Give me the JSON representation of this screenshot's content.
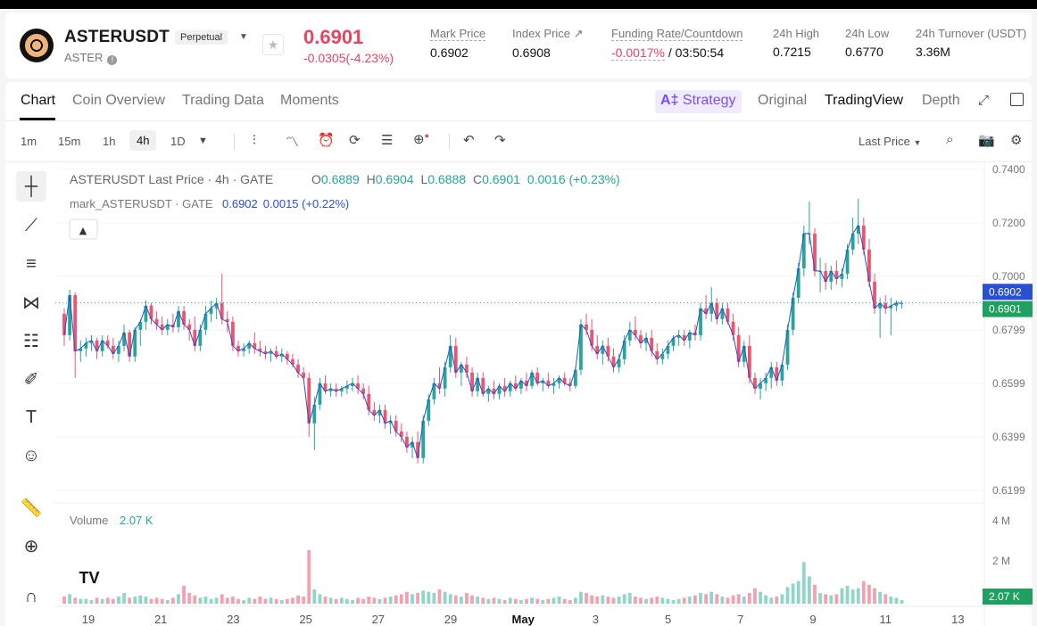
{
  "header": {
    "symbol": "ASTERUSDT",
    "contract_type": "Perpetual",
    "base": "ASTER",
    "last_price": "0.6901",
    "change": "-0.0305(-4.23%)",
    "stats": [
      {
        "label": "Mark Price",
        "value": "0.6902"
      },
      {
        "label": "Index Price ↗",
        "value": "0.6908"
      },
      {
        "label": "Funding Rate/Countdown",
        "value_a": "-0.0017%",
        "value_b": " / 03:50:54"
      },
      {
        "label": "24h High",
        "value": "0.7215"
      },
      {
        "label": "24h Low",
        "value": "0.6770"
      },
      {
        "label": "24h Turnover (USDT)",
        "value": "3.36M"
      }
    ]
  },
  "tabs": [
    "Chart",
    "Coin Overview",
    "Trading Data",
    "Moments"
  ],
  "right_tabs": {
    "strategy": "Strategy",
    "original": "Original",
    "tradingview": "TradingView",
    "depth": "Depth"
  },
  "timeframes": [
    "1m",
    "15m",
    "1h",
    "4h",
    "1D"
  ],
  "price_type": "Last Price",
  "legend": {
    "title": "ASTERUSDT Last Price · 4h · GATE",
    "o_label": "O",
    "o": "0.6889",
    "h_label": "H",
    "h": "0.6904",
    "l_label": "L",
    "l": "0.6888",
    "c_label": "C",
    "c": "0.6901",
    "chg": "0.0016 (+0.23%)",
    "mark_label": "mark_ASTERUSDT · GATE",
    "mark_value": "0.6902",
    "mark_chg": "0.0015 (+0.22%)",
    "volume_label": "Volume",
    "volume_value": "2.07 K"
  },
  "colors": {
    "up": "#26a69a",
    "down": "#ef5370",
    "mark_line": "#2a4fd0",
    "accent": "#7b4dff"
  },
  "chart_data": {
    "type": "candlestick",
    "interval": "4h",
    "y_ticks": [
      "0.7400",
      "0.7200",
      "0.7000",
      "0.6799",
      "0.6599",
      "0.6399",
      "0.6199"
    ],
    "ylim": [
      0.6199,
      0.74
    ],
    "x_ticks": [
      "19",
      "21",
      "23",
      "25",
      "27",
      "29",
      "May",
      "3",
      "5",
      "7",
      "9",
      "11",
      "13"
    ],
    "price_badges": {
      "mark": "0.6902",
      "last": "0.6901"
    },
    "volume_ticks": [
      "4 M",
      "2 M"
    ],
    "volume_badge": "2.07 K",
    "ohlc": [
      [
        0.686,
        0.688,
        0.674,
        0.678
      ],
      [
        0.678,
        0.695,
        0.676,
        0.693
      ],
      [
        0.693,
        0.694,
        0.662,
        0.672
      ],
      [
        0.672,
        0.676,
        0.668,
        0.673
      ],
      [
        0.673,
        0.677,
        0.67,
        0.675
      ],
      [
        0.675,
        0.678,
        0.672,
        0.676
      ],
      [
        0.676,
        0.677,
        0.669,
        0.672
      ],
      [
        0.672,
        0.678,
        0.67,
        0.676
      ],
      [
        0.676,
        0.678,
        0.673,
        0.674
      ],
      [
        0.674,
        0.677,
        0.669,
        0.671
      ],
      [
        0.671,
        0.676,
        0.668,
        0.674
      ],
      [
        0.674,
        0.682,
        0.672,
        0.679
      ],
      [
        0.679,
        0.68,
        0.668,
        0.67
      ],
      [
        0.67,
        0.681,
        0.668,
        0.68
      ],
      [
        0.68,
        0.684,
        0.674,
        0.683
      ],
      [
        0.683,
        0.691,
        0.68,
        0.689
      ],
      [
        0.689,
        0.69,
        0.682,
        0.684
      ],
      [
        0.684,
        0.687,
        0.68,
        0.682
      ],
      [
        0.682,
        0.685,
        0.678,
        0.68
      ],
      [
        0.68,
        0.684,
        0.678,
        0.682
      ],
      [
        0.682,
        0.686,
        0.679,
        0.681
      ],
      [
        0.681,
        0.689,
        0.679,
        0.687
      ],
      [
        0.687,
        0.689,
        0.68,
        0.682
      ],
      [
        0.682,
        0.684,
        0.676,
        0.68
      ],
      [
        0.68,
        0.685,
        0.672,
        0.674
      ],
      [
        0.674,
        0.682,
        0.672,
        0.68
      ],
      [
        0.68,
        0.689,
        0.678,
        0.686
      ],
      [
        0.686,
        0.691,
        0.683,
        0.688
      ],
      [
        0.688,
        0.692,
        0.684,
        0.69
      ],
      [
        0.69,
        0.701,
        0.682,
        0.684
      ],
      [
        0.684,
        0.687,
        0.679,
        0.683
      ],
      [
        0.683,
        0.685,
        0.672,
        0.674
      ],
      [
        0.674,
        0.676,
        0.67,
        0.672
      ],
      [
        0.672,
        0.675,
        0.67,
        0.673
      ],
      [
        0.673,
        0.676,
        0.671,
        0.675
      ],
      [
        0.675,
        0.679,
        0.671,
        0.673
      ],
      [
        0.673,
        0.676,
        0.67,
        0.672
      ],
      [
        0.672,
        0.674,
        0.669,
        0.671
      ],
      [
        0.671,
        0.673,
        0.668,
        0.672
      ],
      [
        0.672,
        0.674,
        0.669,
        0.67
      ],
      [
        0.67,
        0.673,
        0.668,
        0.671
      ],
      [
        0.671,
        0.672,
        0.667,
        0.669
      ],
      [
        0.669,
        0.671,
        0.666,
        0.667
      ],
      [
        0.667,
        0.669,
        0.662,
        0.664
      ],
      [
        0.664,
        0.666,
        0.661,
        0.662
      ],
      [
        0.662,
        0.664,
        0.64,
        0.645
      ],
      [
        0.645,
        0.655,
        0.635,
        0.652
      ],
      [
        0.652,
        0.662,
        0.65,
        0.66
      ],
      [
        0.66,
        0.663,
        0.656,
        0.657
      ],
      [
        0.657,
        0.66,
        0.655,
        0.658
      ],
      [
        0.658,
        0.66,
        0.655,
        0.657
      ],
      [
        0.657,
        0.659,
        0.655,
        0.658
      ],
      [
        0.658,
        0.661,
        0.656,
        0.659
      ],
      [
        0.659,
        0.662,
        0.657,
        0.66
      ],
      [
        0.66,
        0.663,
        0.656,
        0.658
      ],
      [
        0.658,
        0.66,
        0.654,
        0.656
      ],
      [
        0.656,
        0.659,
        0.648,
        0.65
      ],
      [
        0.65,
        0.653,
        0.646,
        0.648
      ],
      [
        0.648,
        0.652,
        0.645,
        0.65
      ],
      [
        0.65,
        0.652,
        0.643,
        0.645
      ],
      [
        0.645,
        0.648,
        0.641,
        0.646
      ],
      [
        0.646,
        0.648,
        0.64,
        0.642
      ],
      [
        0.642,
        0.645,
        0.638,
        0.64
      ],
      [
        0.64,
        0.642,
        0.634,
        0.636
      ],
      [
        0.636,
        0.64,
        0.632,
        0.638
      ],
      [
        0.638,
        0.642,
        0.63,
        0.632
      ],
      [
        0.632,
        0.648,
        0.63,
        0.646
      ],
      [
        0.646,
        0.656,
        0.644,
        0.654
      ],
      [
        0.654,
        0.662,
        0.652,
        0.66
      ],
      [
        0.66,
        0.666,
        0.656,
        0.658
      ],
      [
        0.658,
        0.668,
        0.655,
        0.666
      ],
      [
        0.666,
        0.678,
        0.664,
        0.674
      ],
      [
        0.674,
        0.677,
        0.662,
        0.664
      ],
      [
        0.664,
        0.668,
        0.659,
        0.667
      ],
      [
        0.667,
        0.67,
        0.662,
        0.664
      ],
      [
        0.664,
        0.666,
        0.655,
        0.657
      ],
      [
        0.657,
        0.664,
        0.655,
        0.662
      ],
      [
        0.662,
        0.664,
        0.655,
        0.656
      ],
      [
        0.656,
        0.659,
        0.653,
        0.658
      ],
      [
        0.658,
        0.661,
        0.654,
        0.656
      ],
      [
        0.656,
        0.66,
        0.654,
        0.659
      ],
      [
        0.659,
        0.662,
        0.655,
        0.657
      ],
      [
        0.657,
        0.661,
        0.655,
        0.66
      ],
      [
        0.66,
        0.663,
        0.657,
        0.658
      ],
      [
        0.658,
        0.662,
        0.656,
        0.661
      ],
      [
        0.661,
        0.664,
        0.657,
        0.659
      ],
      [
        0.659,
        0.665,
        0.658,
        0.664
      ],
      [
        0.664,
        0.666,
        0.659,
        0.66
      ],
      [
        0.66,
        0.662,
        0.657,
        0.661
      ],
      [
        0.661,
        0.664,
        0.658,
        0.659
      ],
      [
        0.659,
        0.662,
        0.656,
        0.66
      ],
      [
        0.66,
        0.663,
        0.658,
        0.662
      ],
      [
        0.662,
        0.664,
        0.659,
        0.66
      ],
      [
        0.66,
        0.662,
        0.657,
        0.659
      ],
      [
        0.659,
        0.666,
        0.658,
        0.665
      ],
      [
        0.665,
        0.684,
        0.663,
        0.682
      ],
      [
        0.682,
        0.686,
        0.678,
        0.68
      ],
      [
        0.68,
        0.684,
        0.672,
        0.674
      ],
      [
        0.674,
        0.678,
        0.669,
        0.671
      ],
      [
        0.671,
        0.676,
        0.667,
        0.674
      ],
      [
        0.674,
        0.677,
        0.668,
        0.67
      ],
      [
        0.67,
        0.673,
        0.664,
        0.666
      ],
      [
        0.666,
        0.671,
        0.664,
        0.669
      ],
      [
        0.669,
        0.678,
        0.667,
        0.676
      ],
      [
        0.676,
        0.683,
        0.674,
        0.68
      ],
      [
        0.68,
        0.685,
        0.676,
        0.678
      ],
      [
        0.678,
        0.68,
        0.673,
        0.675
      ],
      [
        0.675,
        0.679,
        0.672,
        0.677
      ],
      [
        0.677,
        0.68,
        0.67,
        0.672
      ],
      [
        0.672,
        0.675,
        0.667,
        0.669
      ],
      [
        0.669,
        0.673,
        0.667,
        0.671
      ],
      [
        0.671,
        0.676,
        0.669,
        0.674
      ],
      [
        0.674,
        0.678,
        0.672,
        0.677
      ],
      [
        0.677,
        0.68,
        0.674,
        0.678
      ],
      [
        0.678,
        0.68,
        0.674,
        0.676
      ],
      [
        0.676,
        0.68,
        0.673,
        0.679
      ],
      [
        0.679,
        0.682,
        0.676,
        0.678
      ],
      [
        0.678,
        0.69,
        0.676,
        0.688
      ],
      [
        0.688,
        0.693,
        0.684,
        0.686
      ],
      [
        0.686,
        0.696,
        0.683,
        0.69
      ],
      [
        0.69,
        0.692,
        0.682,
        0.684
      ],
      [
        0.684,
        0.69,
        0.682,
        0.688
      ],
      [
        0.688,
        0.69,
        0.682,
        0.683
      ],
      [
        0.683,
        0.686,
        0.676,
        0.678
      ],
      [
        0.678,
        0.681,
        0.666,
        0.668
      ],
      [
        0.668,
        0.676,
        0.666,
        0.674
      ],
      [
        0.674,
        0.678,
        0.66,
        0.662
      ],
      [
        0.662,
        0.664,
        0.656,
        0.658
      ],
      [
        0.658,
        0.662,
        0.654,
        0.66
      ],
      [
        0.66,
        0.664,
        0.657,
        0.662
      ],
      [
        0.662,
        0.668,
        0.658,
        0.666
      ],
      [
        0.666,
        0.668,
        0.659,
        0.661
      ],
      [
        0.661,
        0.668,
        0.659,
        0.667
      ],
      [
        0.667,
        0.682,
        0.665,
        0.68
      ],
      [
        0.68,
        0.694,
        0.678,
        0.692
      ],
      [
        0.692,
        0.705,
        0.69,
        0.703
      ],
      [
        0.703,
        0.719,
        0.7,
        0.716
      ],
      [
        0.716,
        0.728,
        0.712,
        0.716
      ],
      [
        0.716,
        0.718,
        0.7,
        0.702
      ],
      [
        0.702,
        0.707,
        0.694,
        0.702
      ],
      [
        0.702,
        0.705,
        0.695,
        0.698
      ],
      [
        0.698,
        0.704,
        0.695,
        0.702
      ],
      [
        0.702,
        0.706,
        0.697,
        0.699
      ],
      [
        0.699,
        0.703,
        0.696,
        0.701
      ],
      [
        0.701,
        0.712,
        0.699,
        0.71
      ],
      [
        0.71,
        0.722,
        0.708,
        0.716
      ],
      [
        0.716,
        0.729,
        0.712,
        0.719
      ],
      [
        0.719,
        0.722,
        0.708,
        0.71
      ],
      [
        0.71,
        0.714,
        0.696,
        0.698
      ],
      [
        0.698,
        0.701,
        0.686,
        0.688
      ],
      [
        0.688,
        0.692,
        0.677,
        0.69
      ],
      [
        0.69,
        0.693,
        0.686,
        0.688
      ],
      [
        0.688,
        0.692,
        0.678,
        0.689
      ],
      [
        0.689,
        0.691,
        0.687,
        0.69
      ],
      [
        0.69,
        0.691,
        0.688,
        0.69
      ]
    ],
    "volume": [
      0.6,
      0.8,
      0.5,
      0.4,
      0.4,
      0.3,
      0.5,
      0.4,
      0.5,
      0.4,
      0.6,
      0.9,
      0.5,
      0.6,
      0.7,
      0.6,
      0.4,
      0.5,
      0.4,
      0.3,
      0.5,
      0.8,
      1.5,
      0.9,
      0.7,
      0.5,
      0.6,
      0.4,
      0.5,
      0.8,
      0.5,
      0.6,
      0.4,
      0.3,
      0.5,
      0.4,
      0.6,
      0.4,
      0.5,
      0.4,
      0.3,
      0.4,
      0.5,
      0.7,
      0.6,
      4.5,
      1.2,
      0.8,
      0.6,
      0.5,
      0.4,
      0.5,
      0.4,
      0.3,
      0.5,
      0.4,
      0.6,
      0.5,
      0.4,
      0.5,
      0.6,
      0.7,
      0.8,
      1.0,
      0.8,
      0.9,
      1.1,
      1.0,
      0.9,
      1.2,
      1.0,
      0.8,
      0.7,
      0.6,
      0.9,
      0.7,
      0.6,
      0.5,
      0.4,
      0.5,
      0.4,
      0.3,
      0.5,
      0.4,
      0.3,
      0.4,
      0.5,
      0.4,
      0.3,
      0.4,
      0.5,
      0.6,
      0.4,
      0.3,
      0.5,
      1.0,
      0.9,
      0.7,
      0.6,
      0.7,
      0.6,
      0.5,
      0.6,
      0.8,
      0.9,
      0.6,
      0.5,
      0.4,
      0.5,
      0.6,
      0.5,
      0.4,
      0.3,
      0.4,
      0.5,
      0.6,
      0.7,
      0.9,
      0.8,
      1.0,
      0.8,
      0.6,
      0.5,
      0.7,
      0.8,
      0.6,
      0.9,
      1.3,
      1.0,
      0.7,
      0.5,
      0.6,
      0.8,
      1.4,
      1.7,
      1.9,
      3.5,
      2.3,
      1.6,
      0.9,
      0.8,
      0.7,
      0.8,
      1.3,
      1.5,
      1.2,
      1.3,
      1.9,
      1.6,
      1.3,
      1.0,
      0.8,
      0.6,
      0.5,
      0.3
    ]
  }
}
